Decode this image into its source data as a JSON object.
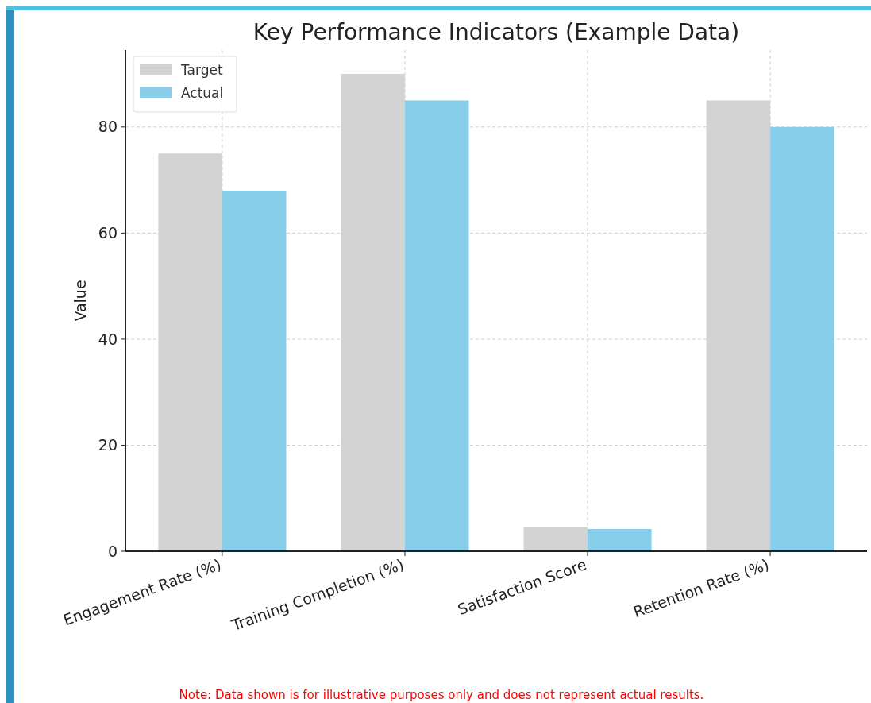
{
  "chart_data": {
    "type": "bar",
    "title": "Key Performance Indicators (Example Data)",
    "ylabel": "Value",
    "categories": [
      "Engagement Rate (%)",
      "Training Completion (%)",
      "Satisfaction Score",
      "Retention Rate (%)"
    ],
    "series": [
      {
        "name": "Target",
        "color": "#d3d3d3",
        "values": [
          75,
          90,
          4.5,
          85
        ]
      },
      {
        "name": "Actual",
        "color": "#87ceeb",
        "values": [
          68,
          85,
          4.2,
          80
        ]
      }
    ],
    "ylim": [
      0,
      94.5
    ],
    "yticks": [
      0,
      20,
      40,
      60,
      80
    ],
    "grid": true,
    "legend": "top left",
    "annotations": [
      "Note: Data shown is for illustrative purposes only and does not represent actual results."
    ]
  }
}
